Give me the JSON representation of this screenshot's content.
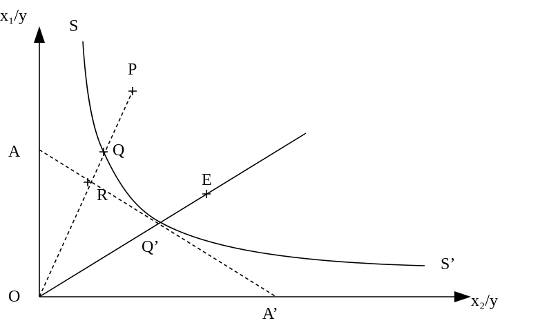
{
  "axes": {
    "y_label": "x₁/y",
    "x_label": "x₂/y"
  },
  "curve": {
    "start_label": "S",
    "end_label": "S’"
  },
  "points": {
    "origin": "O",
    "p": "P",
    "q": "Q",
    "r": "R",
    "e": "E",
    "q_prime": "Q’",
    "a": "A",
    "a_prime": "A’"
  }
}
